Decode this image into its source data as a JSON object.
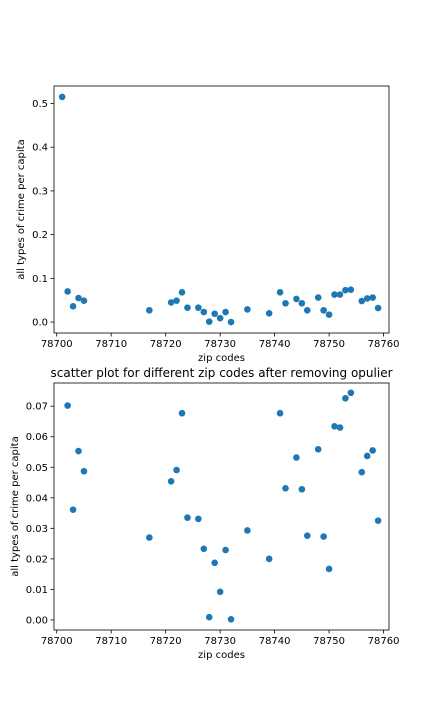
{
  "chart_data": [
    {
      "type": "scatter",
      "title": "",
      "xlabel": "zip codes",
      "ylabel": "all types of crime per capita",
      "xlim": [
        78699.5,
        78761.0
      ],
      "ylim": [
        -0.025,
        0.54
      ],
      "xticks": [
        78700,
        78710,
        78720,
        78730,
        78740,
        78750,
        78760
      ],
      "yticks": [
        0.0,
        0.1,
        0.2,
        0.3,
        0.4,
        0.5
      ],
      "xtick_labels": [
        "78700",
        "78710",
        "78720",
        "78730",
        "78740",
        "78750",
        "78760"
      ],
      "ytick_labels": [
        "0.0",
        "0.1",
        "0.2",
        "0.3",
        "0.4",
        "0.5"
      ],
      "grid": false,
      "marker_color": "#1f77b4",
      "x": [
        78701,
        78702,
        78703,
        78704,
        78705,
        78717,
        78721,
        78722,
        78723,
        78724,
        78726,
        78727,
        78728,
        78729,
        78730,
        78731,
        78732,
        78735,
        78739,
        78741,
        78742,
        78744,
        78745,
        78746,
        78748,
        78749,
        78750,
        78751,
        78752,
        78753,
        78754,
        78756,
        78757,
        78758,
        78759
      ],
      "y": [
        0.515,
        0.07,
        0.036,
        0.055,
        0.049,
        0.027,
        0.045,
        0.049,
        0.068,
        0.033,
        0.033,
        0.023,
        0.001,
        0.019,
        0.009,
        0.023,
        0.0,
        0.029,
        0.02,
        0.068,
        0.043,
        0.053,
        0.043,
        0.027,
        0.056,
        0.027,
        0.017,
        0.063,
        0.063,
        0.073,
        0.074,
        0.048,
        0.054,
        0.056,
        0.032
      ]
    },
    {
      "type": "scatter",
      "title": "scatter plot for different zip codes after removing opulier",
      "xlabel": "zip codes",
      "ylabel": "all types of crime per capita",
      "xlim": [
        78699.5,
        78761.0
      ],
      "ylim": [
        -0.0033,
        0.0776
      ],
      "xticks": [
        78700,
        78710,
        78720,
        78730,
        78740,
        78750,
        78760
      ],
      "yticks": [
        0.0,
        0.01,
        0.02,
        0.03,
        0.04,
        0.05,
        0.06,
        0.07
      ],
      "xtick_labels": [
        "78700",
        "78710",
        "78720",
        "78730",
        "78740",
        "78750",
        "78760"
      ],
      "ytick_labels": [
        "0.00",
        "0.01",
        "0.02",
        "0.03",
        "0.04",
        "0.05",
        "0.06",
        "0.07"
      ],
      "grid": false,
      "marker_color": "#1f77b4",
      "x": [
        78702,
        78703,
        78704,
        78705,
        78717,
        78721,
        78722,
        78723,
        78724,
        78726,
        78727,
        78728,
        78729,
        78730,
        78731,
        78732,
        78735,
        78739,
        78741,
        78742,
        78744,
        78745,
        78746,
        78748,
        78749,
        78750,
        78751,
        78752,
        78753,
        78754,
        78756,
        78757,
        78758,
        78759
      ],
      "y": [
        0.0702,
        0.0361,
        0.0553,
        0.0487,
        0.027,
        0.0454,
        0.0491,
        0.0677,
        0.0335,
        0.0331,
        0.0233,
        0.0009,
        0.0187,
        0.0092,
        0.0229,
        0.0002,
        0.0293,
        0.02,
        0.0677,
        0.0431,
        0.0532,
        0.0428,
        0.0276,
        0.0559,
        0.0273,
        0.0167,
        0.0634,
        0.063,
        0.0726,
        0.0744,
        0.0484,
        0.0537,
        0.0555,
        0.0325
      ]
    }
  ]
}
